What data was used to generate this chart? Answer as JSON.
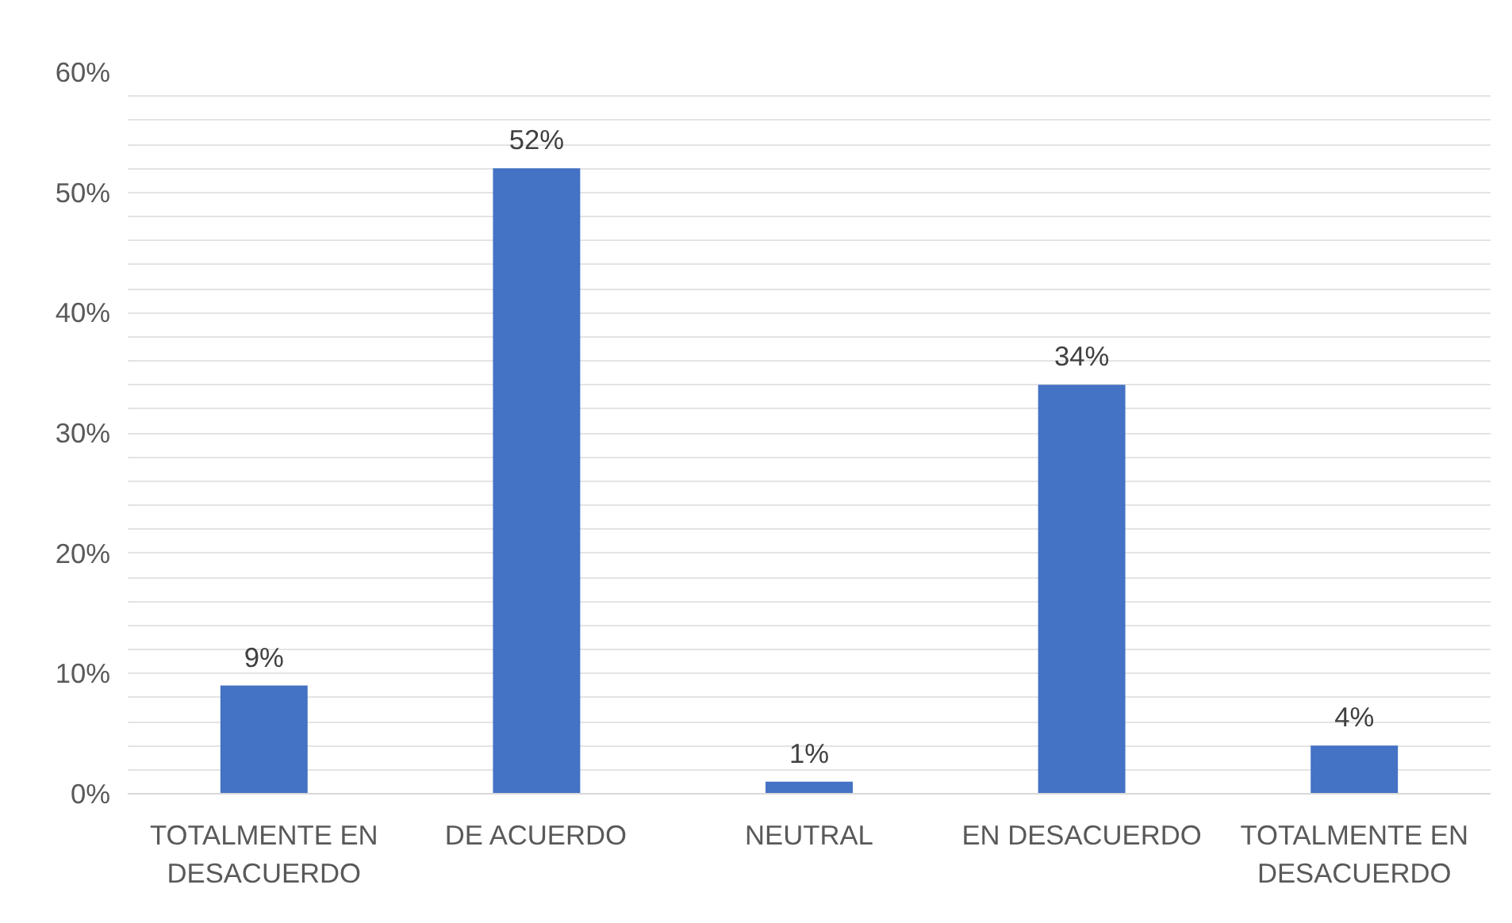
{
  "chart_data": {
    "type": "bar",
    "categories": [
      "TOTALMENTE EN DESACUERDO",
      "DE ACUERDO",
      "NEUTRAL",
      "EN DESACUERDO",
      "TOTALMENTE EN DESACUERDO"
    ],
    "values": [
      9,
      52,
      1,
      34,
      4
    ],
    "value_labels": [
      "9%",
      "52%",
      "1%",
      "34%",
      "4%"
    ],
    "color": "#4472c4",
    "ylim": [
      0,
      60
    ],
    "yticks": [
      {
        "value": 0,
        "label": "0%"
      },
      {
        "value": 2,
        "label": null
      },
      {
        "value": 4,
        "label": null
      },
      {
        "value": 6,
        "label": null
      },
      {
        "value": 8,
        "label": null
      },
      {
        "value": 10,
        "label": "10%"
      },
      {
        "value": 12,
        "label": null
      },
      {
        "value": 14,
        "label": null
      },
      {
        "value": 16,
        "label": null
      },
      {
        "value": 18,
        "label": null
      },
      {
        "value": 20,
        "label": "20%"
      },
      {
        "value": 22,
        "label": null
      },
      {
        "value": 24,
        "label": null
      },
      {
        "value": 26,
        "label": null
      },
      {
        "value": 28,
        "label": null
      },
      {
        "value": 30,
        "label": "30%"
      },
      {
        "value": 32,
        "label": null
      },
      {
        "value": 34,
        "label": null
      },
      {
        "value": 36,
        "label": null
      },
      {
        "value": 38,
        "label": null
      },
      {
        "value": 40,
        "label": "40%"
      },
      {
        "value": 42,
        "label": null
      },
      {
        "value": 44,
        "label": null
      },
      {
        "value": 46,
        "label": null
      },
      {
        "value": 48,
        "label": null
      },
      {
        "value": 50,
        "label": "50%"
      },
      {
        "value": 52,
        "label": null
      },
      {
        "value": 54,
        "label": null
      },
      {
        "value": 56,
        "label": null
      },
      {
        "value": 58,
        "label": null
      },
      {
        "value": 60,
        "label": "60%"
      }
    ],
    "grid": "y"
  }
}
